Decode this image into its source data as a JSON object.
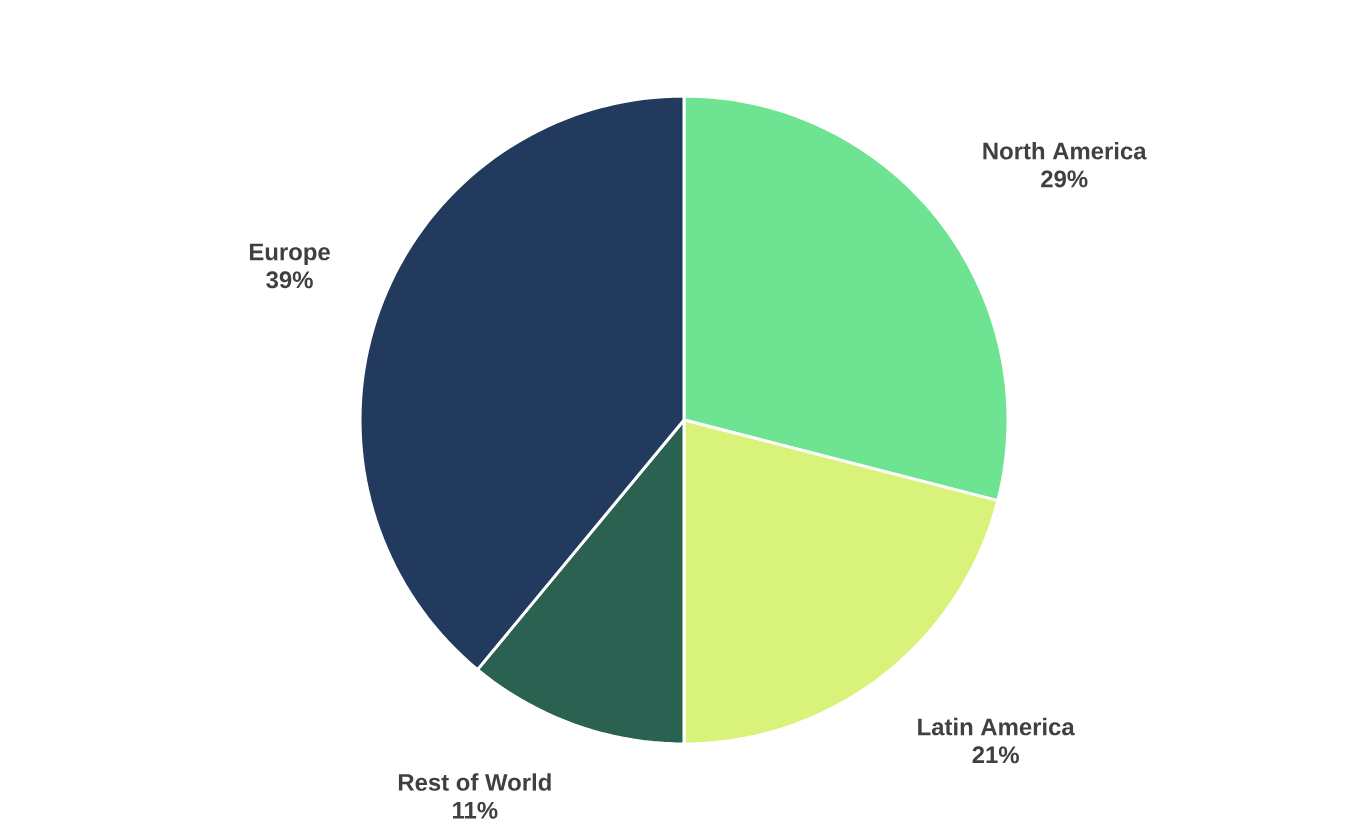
{
  "chart_data": {
    "type": "pie",
    "categories": [
      "North America",
      "Latin America",
      "Rest of World",
      "Europe"
    ],
    "values": [
      29,
      21,
      11,
      39
    ],
    "value_labels": [
      "29%",
      "21%",
      "11%",
      "39%"
    ],
    "colors": [
      "#6ee391",
      "#d8f27a",
      "#2b6150",
      "#213a5e"
    ]
  }
}
